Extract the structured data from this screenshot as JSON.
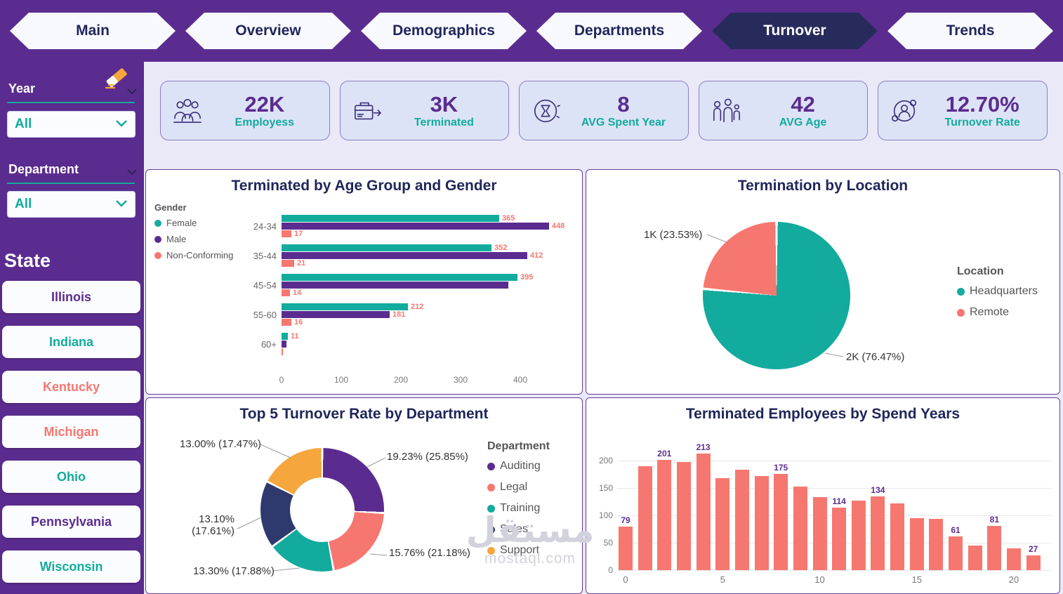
{
  "nav": {
    "tabs": [
      {
        "label": "Main",
        "active": false
      },
      {
        "label": "Overview",
        "active": false
      },
      {
        "label": "Demographics",
        "active": false
      },
      {
        "label": "Departments",
        "active": false
      },
      {
        "label": "Turnover",
        "active": true
      },
      {
        "label": "Trends",
        "active": false
      }
    ]
  },
  "sidebar": {
    "year_filter": {
      "label": "Year",
      "value": "All"
    },
    "department_filter": {
      "label": "Department",
      "value": "All"
    },
    "state_label": "State",
    "states": [
      {
        "label": "Illinois",
        "color": "#5b2c8f"
      },
      {
        "label": "Indiana",
        "color": "#12ab9d"
      },
      {
        "label": "Kentucky",
        "color": "#f6776f"
      },
      {
        "label": "Michigan",
        "color": "#f6776f"
      },
      {
        "label": "Ohio",
        "color": "#12ab9d"
      },
      {
        "label": "Pennsylvania",
        "color": "#5b2c8f"
      },
      {
        "label": "Wisconsin",
        "color": "#12ab9d"
      }
    ]
  },
  "kpis": [
    {
      "value": "22K",
      "label": "Employess"
    },
    {
      "value": "3K",
      "label": "Terminated"
    },
    {
      "value": "8",
      "label": "AVG Spent Year"
    },
    {
      "value": "42",
      "label": "AVG Age"
    },
    {
      "value": "12.70%",
      "label": "Turnover Rate"
    }
  ],
  "watermark": {
    "line1": "مستقل",
    "line2": "mostaql.com"
  },
  "colors": {
    "purple": "#5b2c8f",
    "teal": "#12ab9d",
    "salmon": "#f6776f",
    "navy": "#2e3a6e",
    "orange": "#f5a63d",
    "background": "#e9e9f7"
  },
  "chart_data": [
    {
      "id": "terminated_by_age_gender",
      "type": "bar",
      "orientation": "horizontal",
      "title": "Terminated by Age Group and Gender",
      "legend_title": "Gender",
      "legend_position": "left",
      "categories": [
        "24-34",
        "35-44",
        "45-54",
        "55-60",
        "60+"
      ],
      "series": [
        {
          "name": "Female",
          "color": "#12ab9d",
          "values": [
            365,
            352,
            395,
            212,
            11
          ],
          "labels": [
            "365",
            "352",
            "395",
            "212",
            "11"
          ]
        },
        {
          "name": "Male",
          "color": "#5b2c8f",
          "values": [
            448,
            412,
            380,
            181,
            8
          ],
          "labels": [
            "448",
            "412",
            "",
            "181",
            ""
          ]
        },
        {
          "name": "Non-Conforming",
          "color": "#f6776f",
          "values": [
            17,
            21,
            14,
            16,
            2
          ],
          "labels": [
            "17",
            "21",
            "14",
            "16",
            ""
          ]
        }
      ],
      "x_ticks": [
        0,
        100,
        200,
        300,
        400
      ],
      "x_max": 470,
      "grid": false
    },
    {
      "id": "termination_by_location",
      "type": "pie",
      "title": "Termination by Location",
      "legend_title": "Location",
      "legend_position": "right",
      "slices": [
        {
          "name": "Headquarters",
          "color": "#12ab9d",
          "value": "2K",
          "pct": 76.47,
          "callout": "2K (76.47%)"
        },
        {
          "name": "Remote",
          "color": "#f6776f",
          "value": "1K",
          "pct": 23.53,
          "callout": "1K (23.53%)"
        }
      ]
    },
    {
      "id": "top5_turnover_rate_by_department",
      "type": "pie",
      "subtype": "donut",
      "title": "Top 5 Turnover Rate by Department",
      "legend_title": "Department",
      "legend_position": "right",
      "slices": [
        {
          "name": "Auditing",
          "color": "#5b2c8f",
          "rate": "19.23%",
          "share_pct": 25.85,
          "callout": "19.23% (25.85%)"
        },
        {
          "name": "Legal",
          "color": "#f6776f",
          "rate": "15.76%",
          "share_pct": 21.18,
          "callout": "15.76% (21.18%)"
        },
        {
          "name": "Training",
          "color": "#12ab9d",
          "rate": "13.30%",
          "share_pct": 17.88,
          "callout": "13.30% (17.88%)"
        },
        {
          "name": "Sales",
          "color": "#2e3a6e",
          "rate": "13.10%",
          "share_pct": 17.61,
          "callout_line1": "13.10%",
          "callout_line2": "(17.61%)"
        },
        {
          "name": "Support",
          "color": "#f5a63d",
          "rate": "13.00%",
          "share_pct": 17.47,
          "callout": "13.00% (17.47%)"
        }
      ]
    },
    {
      "id": "terminated_employees_by_spend_years",
      "type": "bar",
      "title": "Terminated Employees by Spend Years",
      "bar_color": "#f6776f",
      "x": [
        0,
        1,
        2,
        3,
        4,
        5,
        6,
        7,
        8,
        9,
        10,
        11,
        12,
        13,
        14,
        15,
        16,
        17,
        18,
        19,
        20,
        21
      ],
      "values": [
        79,
        190,
        201,
        197,
        213,
        168,
        183,
        172,
        175,
        152,
        133,
        114,
        127,
        134,
        122,
        95,
        93,
        61,
        45,
        81,
        40,
        27
      ],
      "data_labels": [
        "79",
        "",
        "201",
        "",
        "213",
        "",
        "",
        "",
        "175",
        "",
        "",
        "114",
        "",
        "134",
        "",
        "",
        "",
        "61",
        "",
        "81",
        "",
        "27"
      ],
      "x_ticks": [
        0,
        5,
        10,
        15,
        20
      ],
      "y_ticks": [
        0,
        50,
        100,
        150,
        200
      ],
      "ylim": [
        0,
        225
      ],
      "grid": true
    }
  ]
}
